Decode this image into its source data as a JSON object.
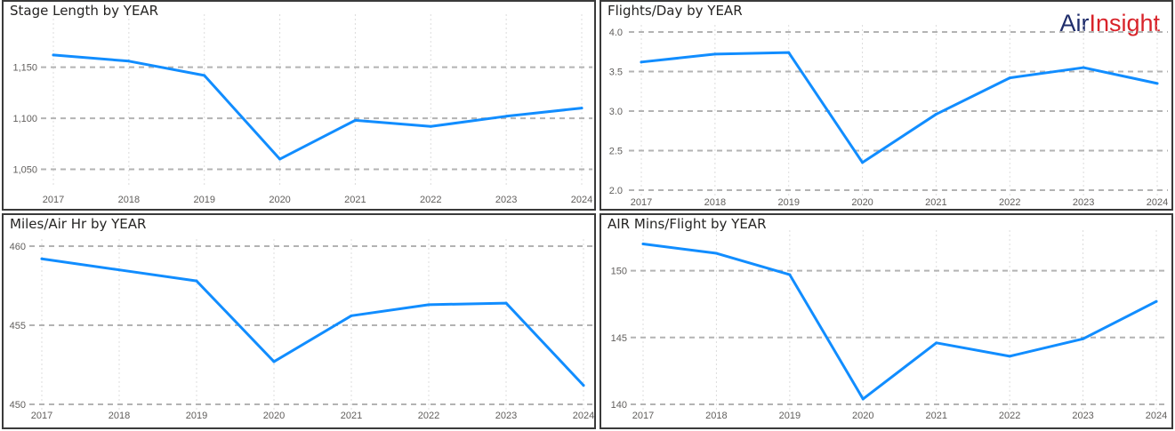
{
  "logo": {
    "part1": "Air",
    "part2": "Insight"
  },
  "series_color": "#118DFF",
  "chart_data": [
    {
      "type": "line",
      "title": "Stage Length by YEAR",
      "x": [
        "2017",
        "2018",
        "2019",
        "2020",
        "2021",
        "2022",
        "2023",
        "2024"
      ],
      "values": [
        1162,
        1156,
        1142,
        1060,
        1098,
        1092,
        1102,
        1110
      ],
      "ylim": [
        1040,
        1195
      ],
      "yticks": [
        1050,
        1100,
        1150
      ],
      "ytick_labels": [
        "1,050",
        "1,100",
        "1,150"
      ],
      "grid": true
    },
    {
      "type": "line",
      "title": "Flights/Day by YEAR",
      "x": [
        "2017",
        "2018",
        "2019",
        "2020",
        "2021",
        "2022",
        "2023",
        "2024"
      ],
      "values": [
        3.62,
        3.72,
        3.74,
        2.35,
        2.96,
        3.42,
        3.55,
        3.35
      ],
      "ylim": [
        2.0,
        4.0
      ],
      "yticks": [
        2.0,
        2.5,
        3.0,
        3.5,
        4.0
      ],
      "ytick_labels": [
        "2.0",
        "2.5",
        "3.0",
        "3.5",
        "4.0"
      ],
      "grid": true
    },
    {
      "type": "line",
      "title": "Miles/Air Hr by YEAR",
      "x": [
        "2017",
        "2018",
        "2019",
        "2020",
        "2021",
        "2022",
        "2023",
        "2024"
      ],
      "values": [
        459.2,
        458.5,
        457.8,
        452.7,
        455.6,
        456.3,
        456.4,
        451.2
      ],
      "ylim": [
        450,
        460
      ],
      "yticks": [
        450,
        455,
        460
      ],
      "ytick_labels": [
        "450",
        "455",
        "460"
      ],
      "grid": true
    },
    {
      "type": "line",
      "title": "AIR Mins/Flight by YEAR",
      "x": [
        "2017",
        "2018",
        "2019",
        "2020",
        "2021",
        "2022",
        "2023",
        "2024"
      ],
      "values": [
        152.0,
        151.3,
        149.7,
        140.4,
        144.6,
        143.6,
        144.9,
        147.7
      ],
      "ylim": [
        140,
        152.5
      ],
      "yticks": [
        140,
        145,
        150
      ],
      "ytick_labels": [
        "140",
        "145",
        "150"
      ],
      "grid": true
    }
  ]
}
